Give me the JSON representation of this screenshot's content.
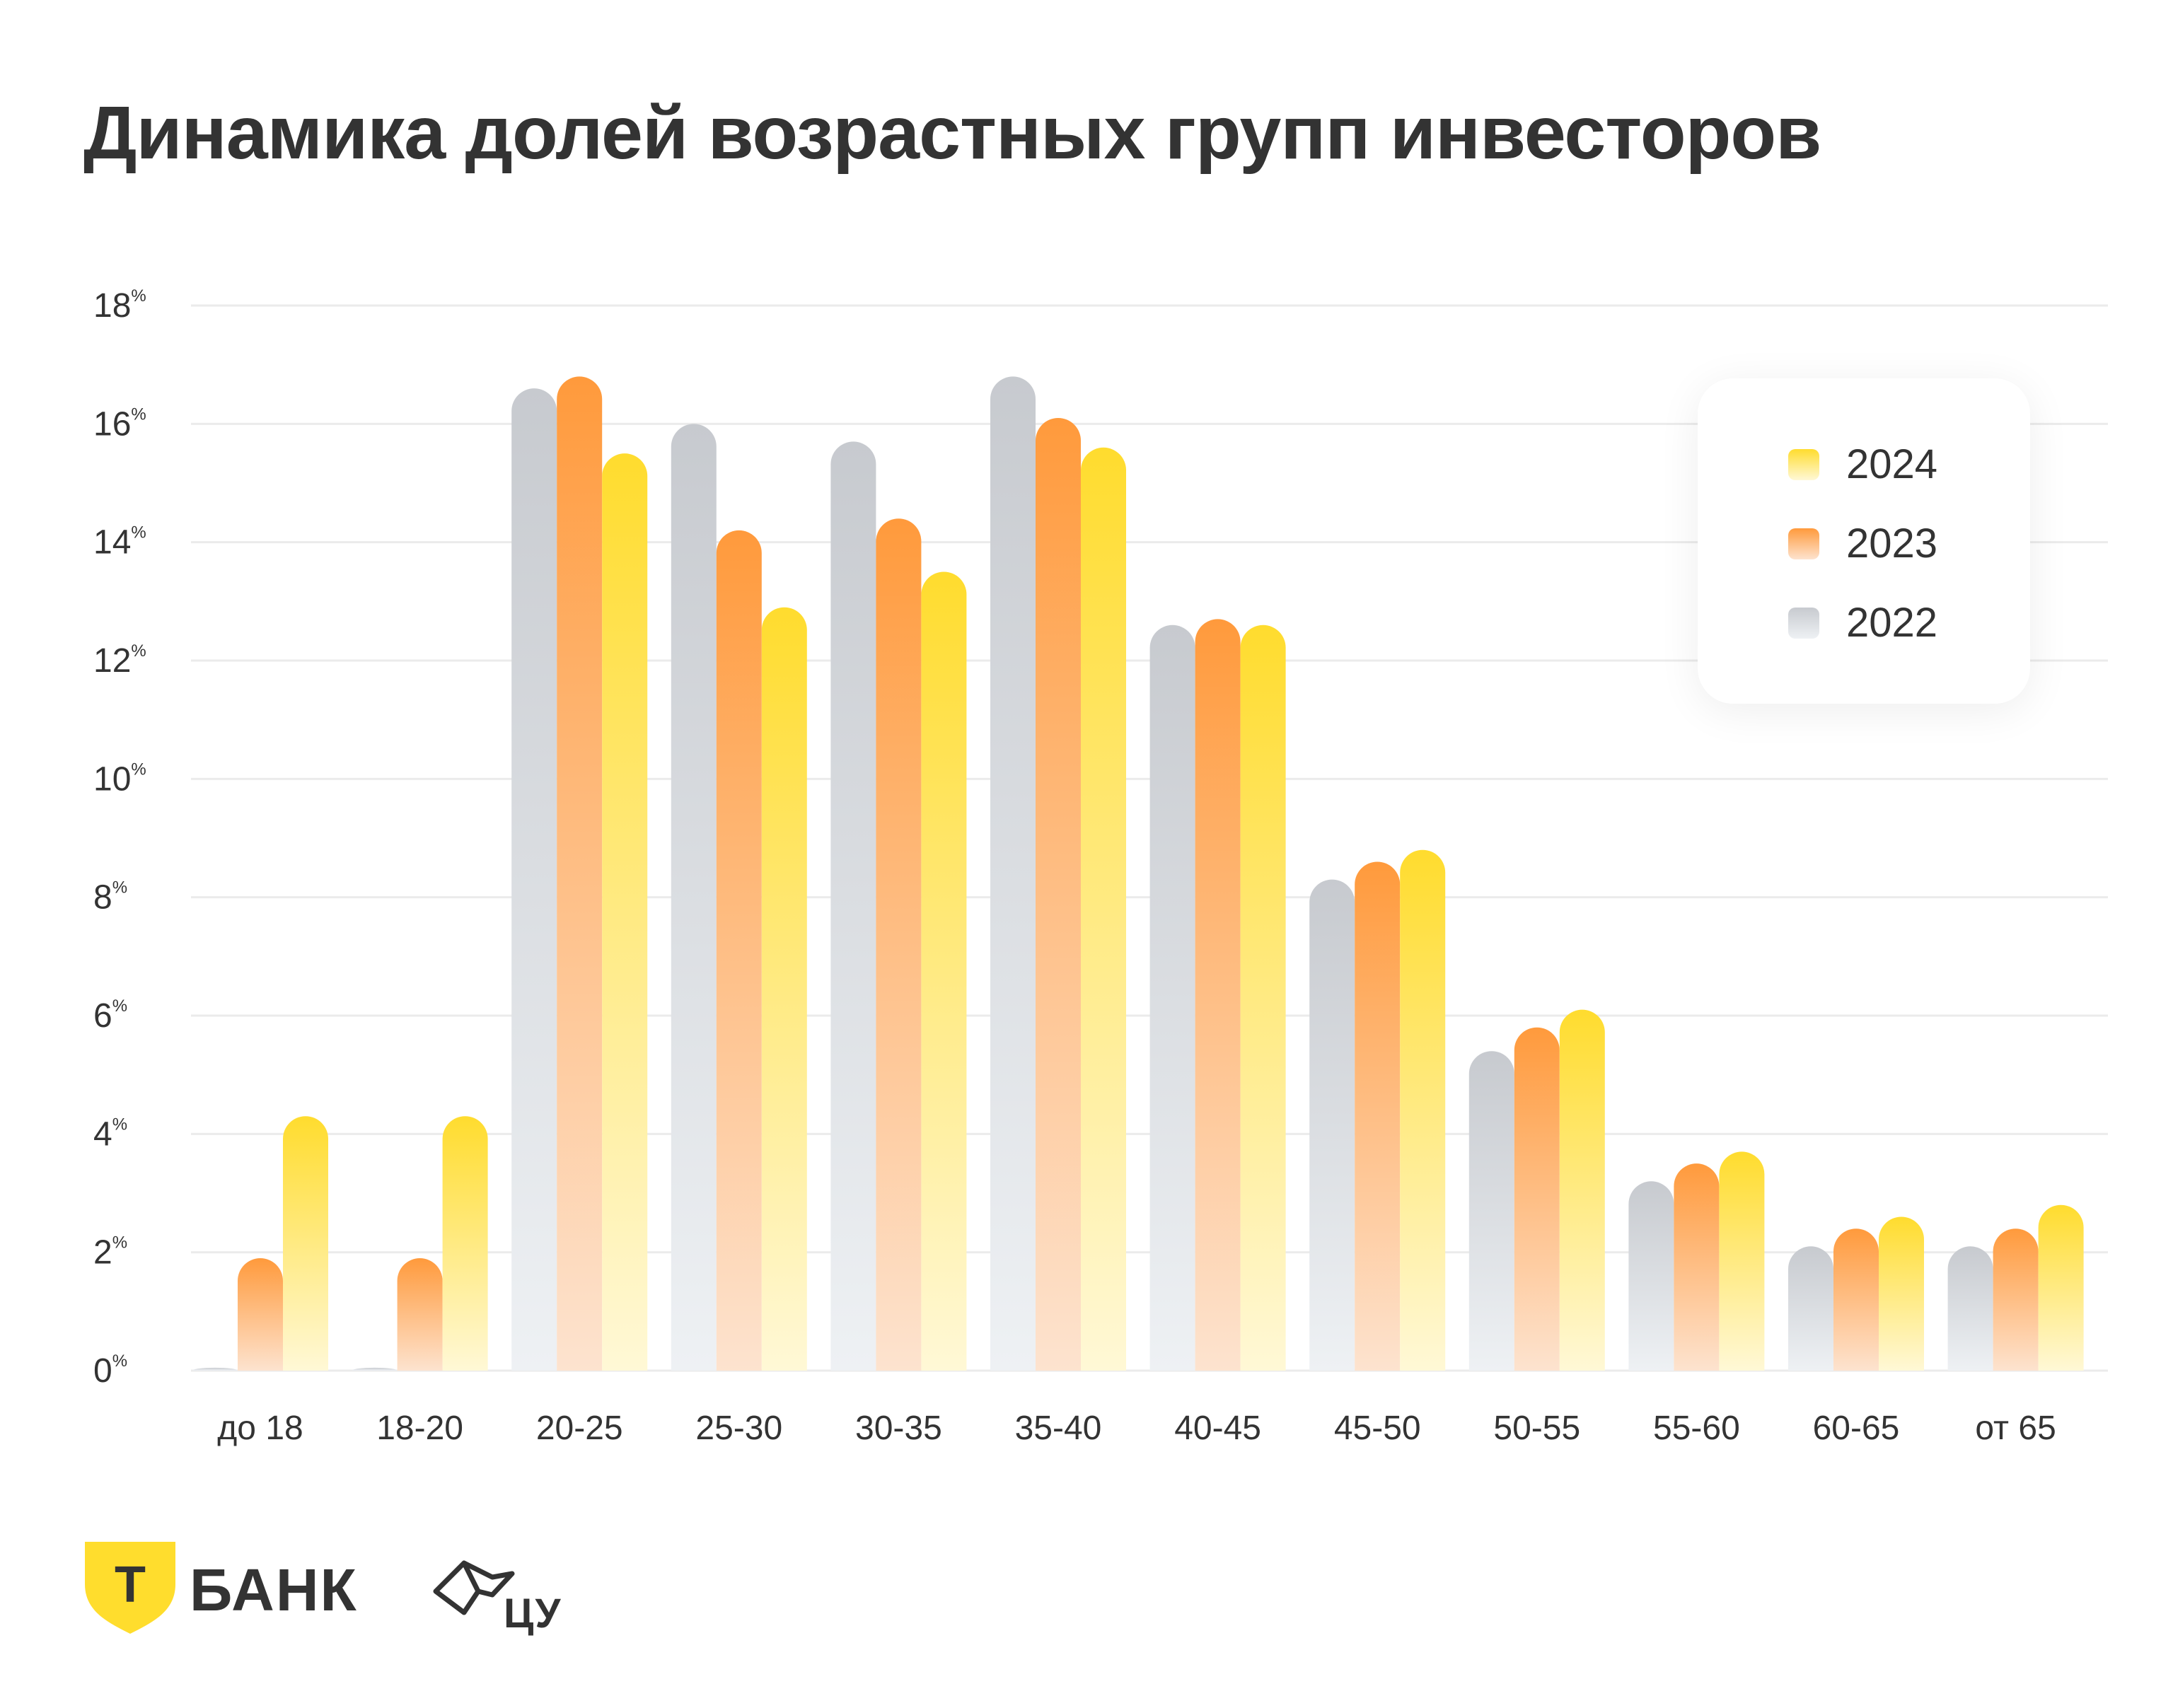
{
  "title": "Динамика долей возрастных групп инвесторов",
  "colors": {
    "2022": [
      "#c7cacf",
      "#eef1f4"
    ],
    "2023": [
      "#ff9a3c",
      "#fde3cf"
    ],
    "2024": [
      "#ffdc2e",
      "#fff8d6"
    ],
    "grid": "#ebebeb",
    "text": "#333333",
    "brand": "#ffdd2d"
  },
  "chart_data": {
    "type": "bar",
    "title": "Динамика долей возрастных групп инвесторов",
    "categories": [
      "до 18",
      "18-20",
      "20-25",
      "25-30",
      "30-35",
      "35-40",
      "40-45",
      "45-50",
      "50-55",
      "55-60",
      "60-65",
      "от 65"
    ],
    "series": [
      {
        "name": "2022",
        "values": [
          0.05,
          0.05,
          16.6,
          16.0,
          15.7,
          16.8,
          12.6,
          8.3,
          5.4,
          3.2,
          2.1,
          2.1
        ]
      },
      {
        "name": "2023",
        "values": [
          1.9,
          1.9,
          16.8,
          14.2,
          14.4,
          16.1,
          12.7,
          8.6,
          5.8,
          3.5,
          2.4,
          2.4
        ]
      },
      {
        "name": "2024",
        "values": [
          4.3,
          4.3,
          15.5,
          12.9,
          13.5,
          15.6,
          12.6,
          8.8,
          6.1,
          3.7,
          2.6,
          2.8
        ]
      }
    ],
    "yticks": [
      "0",
      "2",
      "4",
      "6",
      "8",
      "10",
      "12",
      "14",
      "16",
      "18"
    ],
    "ytick_suffix": "%",
    "ylim": [
      0,
      18
    ],
    "grid": true,
    "legend_position": "top-right",
    "legend": [
      "2024",
      "2023",
      "2022"
    ]
  },
  "logos": {
    "tbank_mark": "Т",
    "tbank_text": "БАНК",
    "cu_text": "ЦУ"
  }
}
